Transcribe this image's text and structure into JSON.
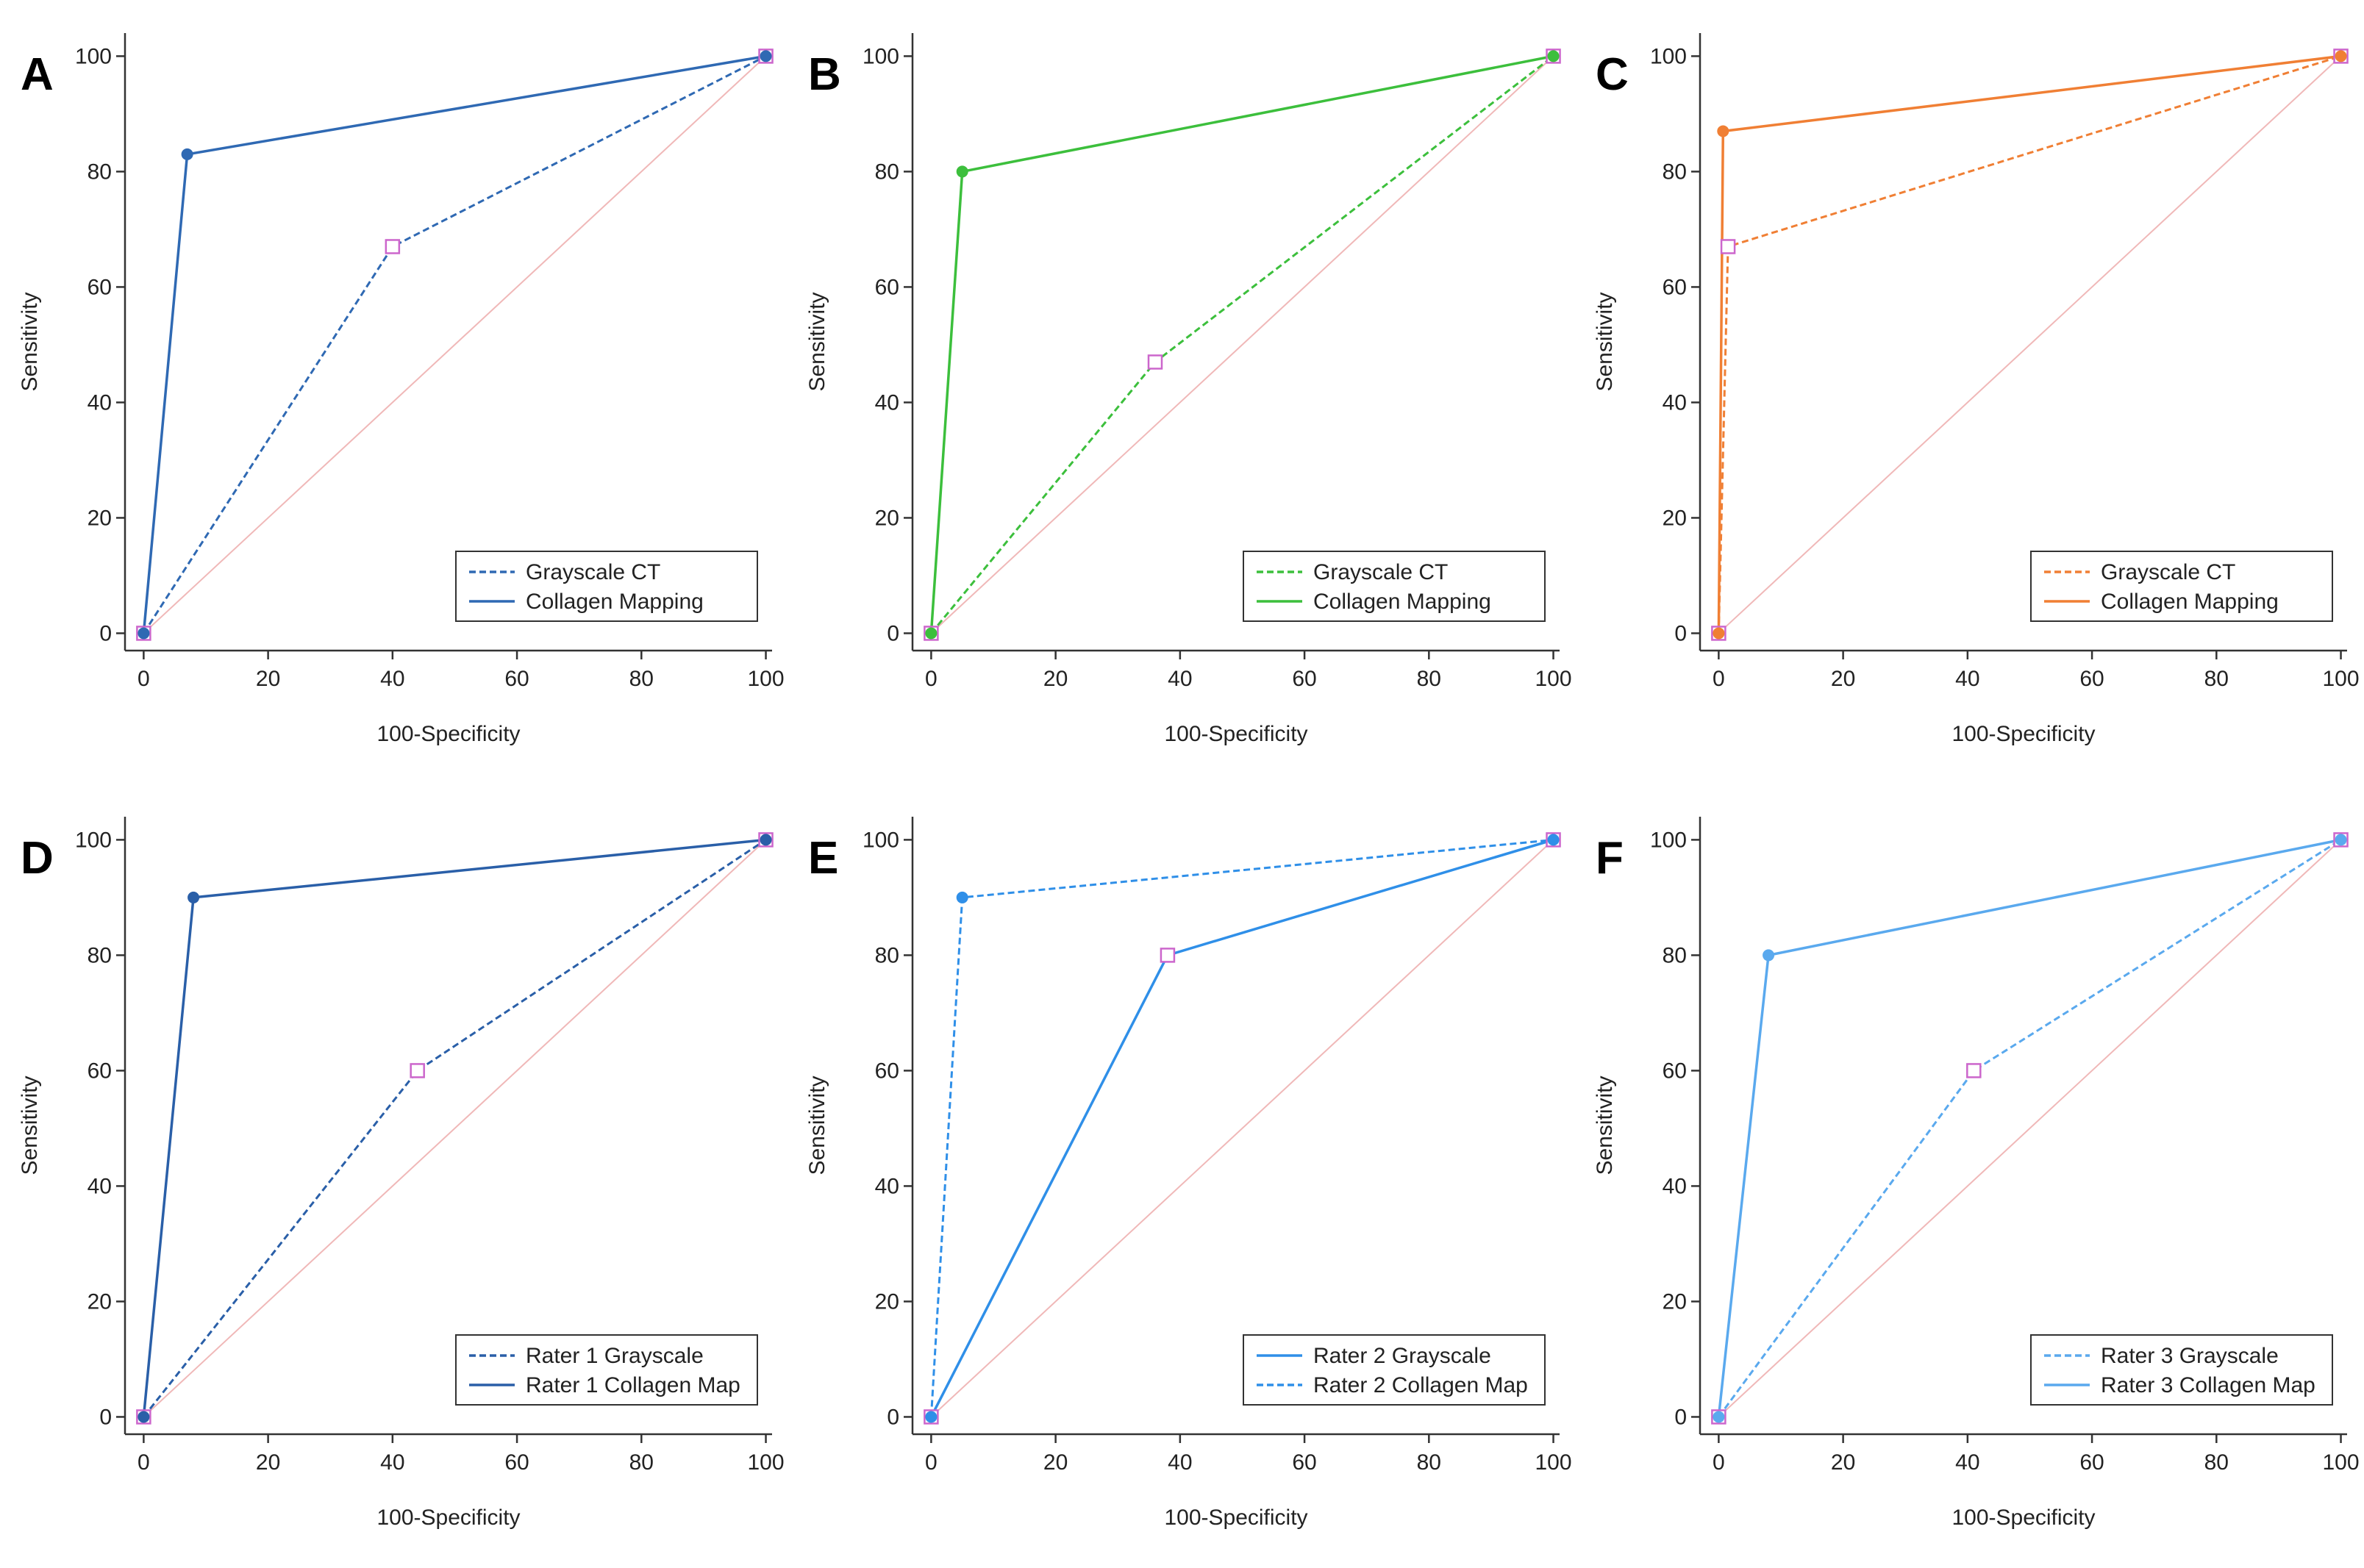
{
  "chart_data": [
    {
      "type": "line",
      "label": "A",
      "xlabel": "100-Specificity",
      "ylabel": "Sensitivity",
      "xlim": [
        -3,
        101
      ],
      "ylim": [
        -3,
        104
      ],
      "xticks": [
        0,
        20,
        40,
        60,
        80,
        100
      ],
      "yticks": [
        0,
        20,
        40,
        60,
        80,
        100
      ],
      "legend": "lower right",
      "series": [
        {
          "name": "Grayscale CT",
          "color": "#2f69b3",
          "dashed": true,
          "marker": "square",
          "x": [
            0,
            40,
            100
          ],
          "values": [
            0,
            67,
            100
          ]
        },
        {
          "name": "Collagen Mapping",
          "color": "#2f69b3",
          "dashed": false,
          "marker": "circle",
          "x": [
            0,
            7,
            100
          ],
          "values": [
            0,
            83,
            100
          ]
        }
      ]
    },
    {
      "type": "line",
      "label": "B",
      "xlabel": "100-Specificity",
      "ylabel": "Sensitivity",
      "xlim": [
        -3,
        101
      ],
      "ylim": [
        -3,
        104
      ],
      "xticks": [
        0,
        20,
        40,
        60,
        80,
        100
      ],
      "yticks": [
        0,
        20,
        40,
        60,
        80,
        100
      ],
      "legend": "lower right",
      "series": [
        {
          "name": "Grayscale CT",
          "color": "#3cbf3c",
          "dashed": true,
          "marker": "square",
          "x": [
            0,
            36,
            100
          ],
          "values": [
            0,
            47,
            100
          ]
        },
        {
          "name": "Collagen Mapping",
          "color": "#3cbf3c",
          "dashed": false,
          "marker": "circle",
          "x": [
            0,
            5,
            100
          ],
          "values": [
            0,
            80,
            100
          ]
        }
      ]
    },
    {
      "type": "line",
      "label": "C",
      "xlabel": "100-Specificity",
      "ylabel": "Sensitivity",
      "xlim": [
        -3,
        101
      ],
      "ylim": [
        -3,
        104
      ],
      "xticks": [
        0,
        20,
        40,
        60,
        80,
        100
      ],
      "yticks": [
        0,
        20,
        40,
        60,
        80,
        100
      ],
      "legend": "lower right",
      "series": [
        {
          "name": "Grayscale CT",
          "color": "#f07f34",
          "dashed": true,
          "marker": "square",
          "x": [
            0,
            1.5,
            100
          ],
          "values": [
            0,
            67,
            100
          ]
        },
        {
          "name": "Collagen Mapping",
          "color": "#f07f34",
          "dashed": false,
          "marker": "circle",
          "x": [
            0,
            0.7,
            100
          ],
          "values": [
            0,
            87,
            100
          ]
        }
      ]
    },
    {
      "type": "line",
      "label": "D",
      "xlabel": "100-Specificity",
      "ylabel": "Sensitivity",
      "xlim": [
        -3,
        101
      ],
      "ylim": [
        -3,
        104
      ],
      "xticks": [
        0,
        20,
        40,
        60,
        80,
        100
      ],
      "yticks": [
        0,
        20,
        40,
        60,
        80,
        100
      ],
      "legend": "lower right",
      "series": [
        {
          "name": "Rater 1 Grayscale",
          "color": "#2a5fa8",
          "dashed": true,
          "marker": "square",
          "x": [
            0,
            44,
            100
          ],
          "values": [
            0,
            60,
            100
          ]
        },
        {
          "name": "Rater 1 Collagen Map",
          "color": "#2a5fa8",
          "dashed": false,
          "marker": "circle",
          "x": [
            0,
            8,
            100
          ],
          "values": [
            0,
            90,
            100
          ]
        }
      ]
    },
    {
      "type": "line",
      "label": "E",
      "xlabel": "100-Specificity",
      "ylabel": "Sensitivity",
      "xlim": [
        -3,
        101
      ],
      "ylim": [
        -3,
        104
      ],
      "xticks": [
        0,
        20,
        40,
        60,
        80,
        100
      ],
      "yticks": [
        0,
        20,
        40,
        60,
        80,
        100
      ],
      "legend": "lower right",
      "series": [
        {
          "name": "Rater 2 Grayscale",
          "color": "#2f8fe8",
          "dashed": false,
          "marker": "square",
          "x": [
            0,
            38,
            100
          ],
          "values": [
            0,
            80,
            100
          ]
        },
        {
          "name": "Rater 2 Collagen Map",
          "color": "#2f8fe8",
          "dashed": true,
          "marker": "circle",
          "x": [
            0,
            5,
            100
          ],
          "values": [
            0,
            90,
            100
          ]
        }
      ]
    },
    {
      "type": "line",
      "label": "F",
      "xlabel": "100-Specificity",
      "ylabel": "Sensitivity",
      "xlim": [
        -3,
        101
      ],
      "ylim": [
        -3,
        104
      ],
      "xticks": [
        0,
        20,
        40,
        60,
        80,
        100
      ],
      "yticks": [
        0,
        20,
        40,
        60,
        80,
        100
      ],
      "legend": "lower right",
      "series": [
        {
          "name": "Rater 3 Grayscale",
          "color": "#5aa9ee",
          "dashed": true,
          "marker": "square",
          "x": [
            0,
            41,
            100
          ],
          "values": [
            0,
            60,
            100
          ]
        },
        {
          "name": "Rater 3 Collagen Map",
          "color": "#5aa9ee",
          "dashed": false,
          "marker": "circle",
          "x": [
            0,
            8,
            100
          ],
          "values": [
            0,
            80,
            100
          ]
        }
      ]
    }
  ]
}
